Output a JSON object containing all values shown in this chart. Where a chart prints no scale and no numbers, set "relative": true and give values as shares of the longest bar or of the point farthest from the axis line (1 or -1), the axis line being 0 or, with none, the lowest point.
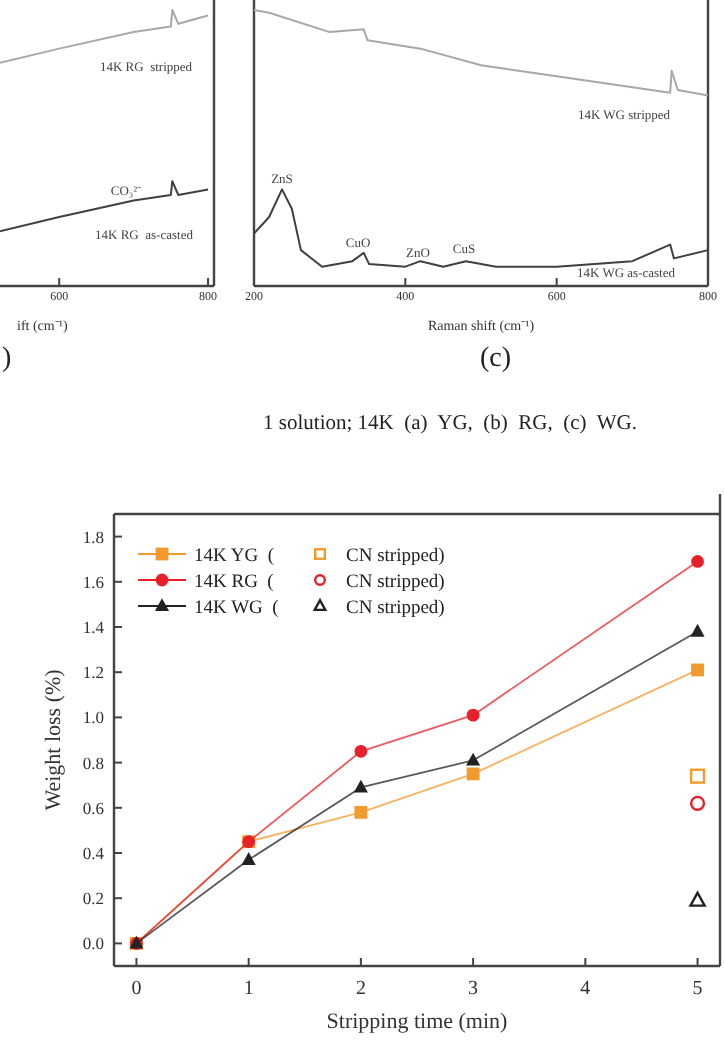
{
  "chart_data": [
    {
      "type": "line",
      "title": ")",
      "xlabel": "ift (cm⁻¹)",
      "relative": true,
      "xlim": [
        507,
        808
      ],
      "xticks": [
        600,
        800
      ],
      "tick_labels": "x",
      "grid": false,
      "legend": false,
      "marker": "none",
      "line_style": "solid",
      "series": [
        {
          "color": "#a8a8a8",
          "x": [
            507,
            600,
            700,
            750,
            752,
            760,
            800
          ],
          "values": [
            0.8,
            0.86,
            0.92,
            0.94,
            1,
            0.95,
            0.98
          ]
        },
        {
          "color": "#404040",
          "x": [
            507,
            600,
            650,
            700,
            750,
            752,
            760,
            800
          ],
          "values": [
            0.19,
            0.25,
            0.28,
            0.31,
            0.33,
            0.38,
            0.33,
            0.35
          ]
        }
      ],
      "annotations": [
        "14K RG  stripped",
        "CO₃²⁻",
        "14K RG  as-casted"
      ]
    },
    {
      "type": "line",
      "title": "(c)",
      "xlabel": "Raman shift (cm⁻¹)",
      "relative": true,
      "xlim": [
        200,
        800
      ],
      "xticks": [
        200,
        400,
        600,
        800
      ],
      "tick_labels": "x",
      "grid": false,
      "legend": false,
      "marker": "none",
      "line_style": "solid",
      "series": [
        {
          "color": "#a8a8a8",
          "x": [
            200,
            220,
            300,
            345,
            350,
            420,
            500,
            600,
            700,
            750,
            752,
            760,
            800
          ],
          "values": [
            1,
            0.99,
            0.92,
            0.93,
            0.89,
            0.86,
            0.8,
            0.76,
            0.72,
            0.7,
            0.78,
            0.71,
            0.69
          ]
        },
        {
          "color": "#404040",
          "x": [
            200,
            220,
            237,
            250,
            262,
            290,
            330,
            345,
            352,
            400,
            420,
            450,
            480,
            520,
            600,
            700,
            750,
            755,
            800
          ],
          "values": [
            0.19,
            0.25,
            0.35,
            0.28,
            0.13,
            0.07,
            0.09,
            0.12,
            0.08,
            0.07,
            0.09,
            0.07,
            0.09,
            0.07,
            0.07,
            0.09,
            0.15,
            0.1,
            0.13
          ]
        }
      ],
      "annotations": [
        "14K WG stripped",
        "ZnS",
        "CuO",
        "ZnO",
        "CuS",
        "14K WG as-casted",
        "1 solution; 14K  (a)  YG,  (b)  RG,  (c)  WG."
      ]
    },
    {
      "type": "line",
      "xlabel": "Stripping time (min)",
      "ylabel": "Weight loss (%)",
      "xlim": [
        -0.2,
        5.2
      ],
      "ylim": [
        -0.1,
        1.9
      ],
      "xticks": [
        0,
        1,
        2,
        3,
        4,
        5
      ],
      "yticks": [
        {
          "value": 0,
          "label": "0.0"
        },
        0.2,
        0.4,
        0.6,
        0.8,
        {
          "value": 1,
          "label": "1.0"
        },
        1.2,
        1.4,
        1.6,
        1.8
      ],
      "grid": false,
      "legend": "top left",
      "line_style": "solid",
      "series": [
        {
          "name": "14K YG  (",
          "color": "#f39a2e",
          "marker": "square",
          "x": [
            0,
            1,
            2,
            3,
            5
          ],
          "values": [
            0,
            0.45,
            0.58,
            0.75,
            1.21
          ]
        },
        {
          "name": "14K RG  (",
          "color": "#e8202a",
          "marker": "circle",
          "x": [
            0,
            1,
            2,
            3,
            5
          ],
          "values": [
            0,
            0.45,
            0.85,
            1.01,
            1.69
          ]
        },
        {
          "name": "14K WG  (",
          "color": "#222222",
          "marker": "triangle",
          "x": [
            0,
            1,
            2,
            3,
            5
          ],
          "values": [
            0,
            0.37,
            0.69,
            0.81,
            1.38
          ]
        },
        {
          "name": "CN stripped)",
          "type": "scatter",
          "color": "#f39a2e",
          "marker": "square",
          "x": [
            5
          ],
          "values": [
            0.74
          ]
        },
        {
          "name": "CN stripped)",
          "type": "scatter",
          "color": "#e8202a",
          "marker": "circle",
          "x": [
            5
          ],
          "values": [
            0.62
          ]
        },
        {
          "name": "CN stripped)",
          "type": "scatter",
          "color": "#222222",
          "marker": "triangle",
          "x": [
            5
          ],
          "values": [
            0.19
          ]
        }
      ]
    }
  ]
}
